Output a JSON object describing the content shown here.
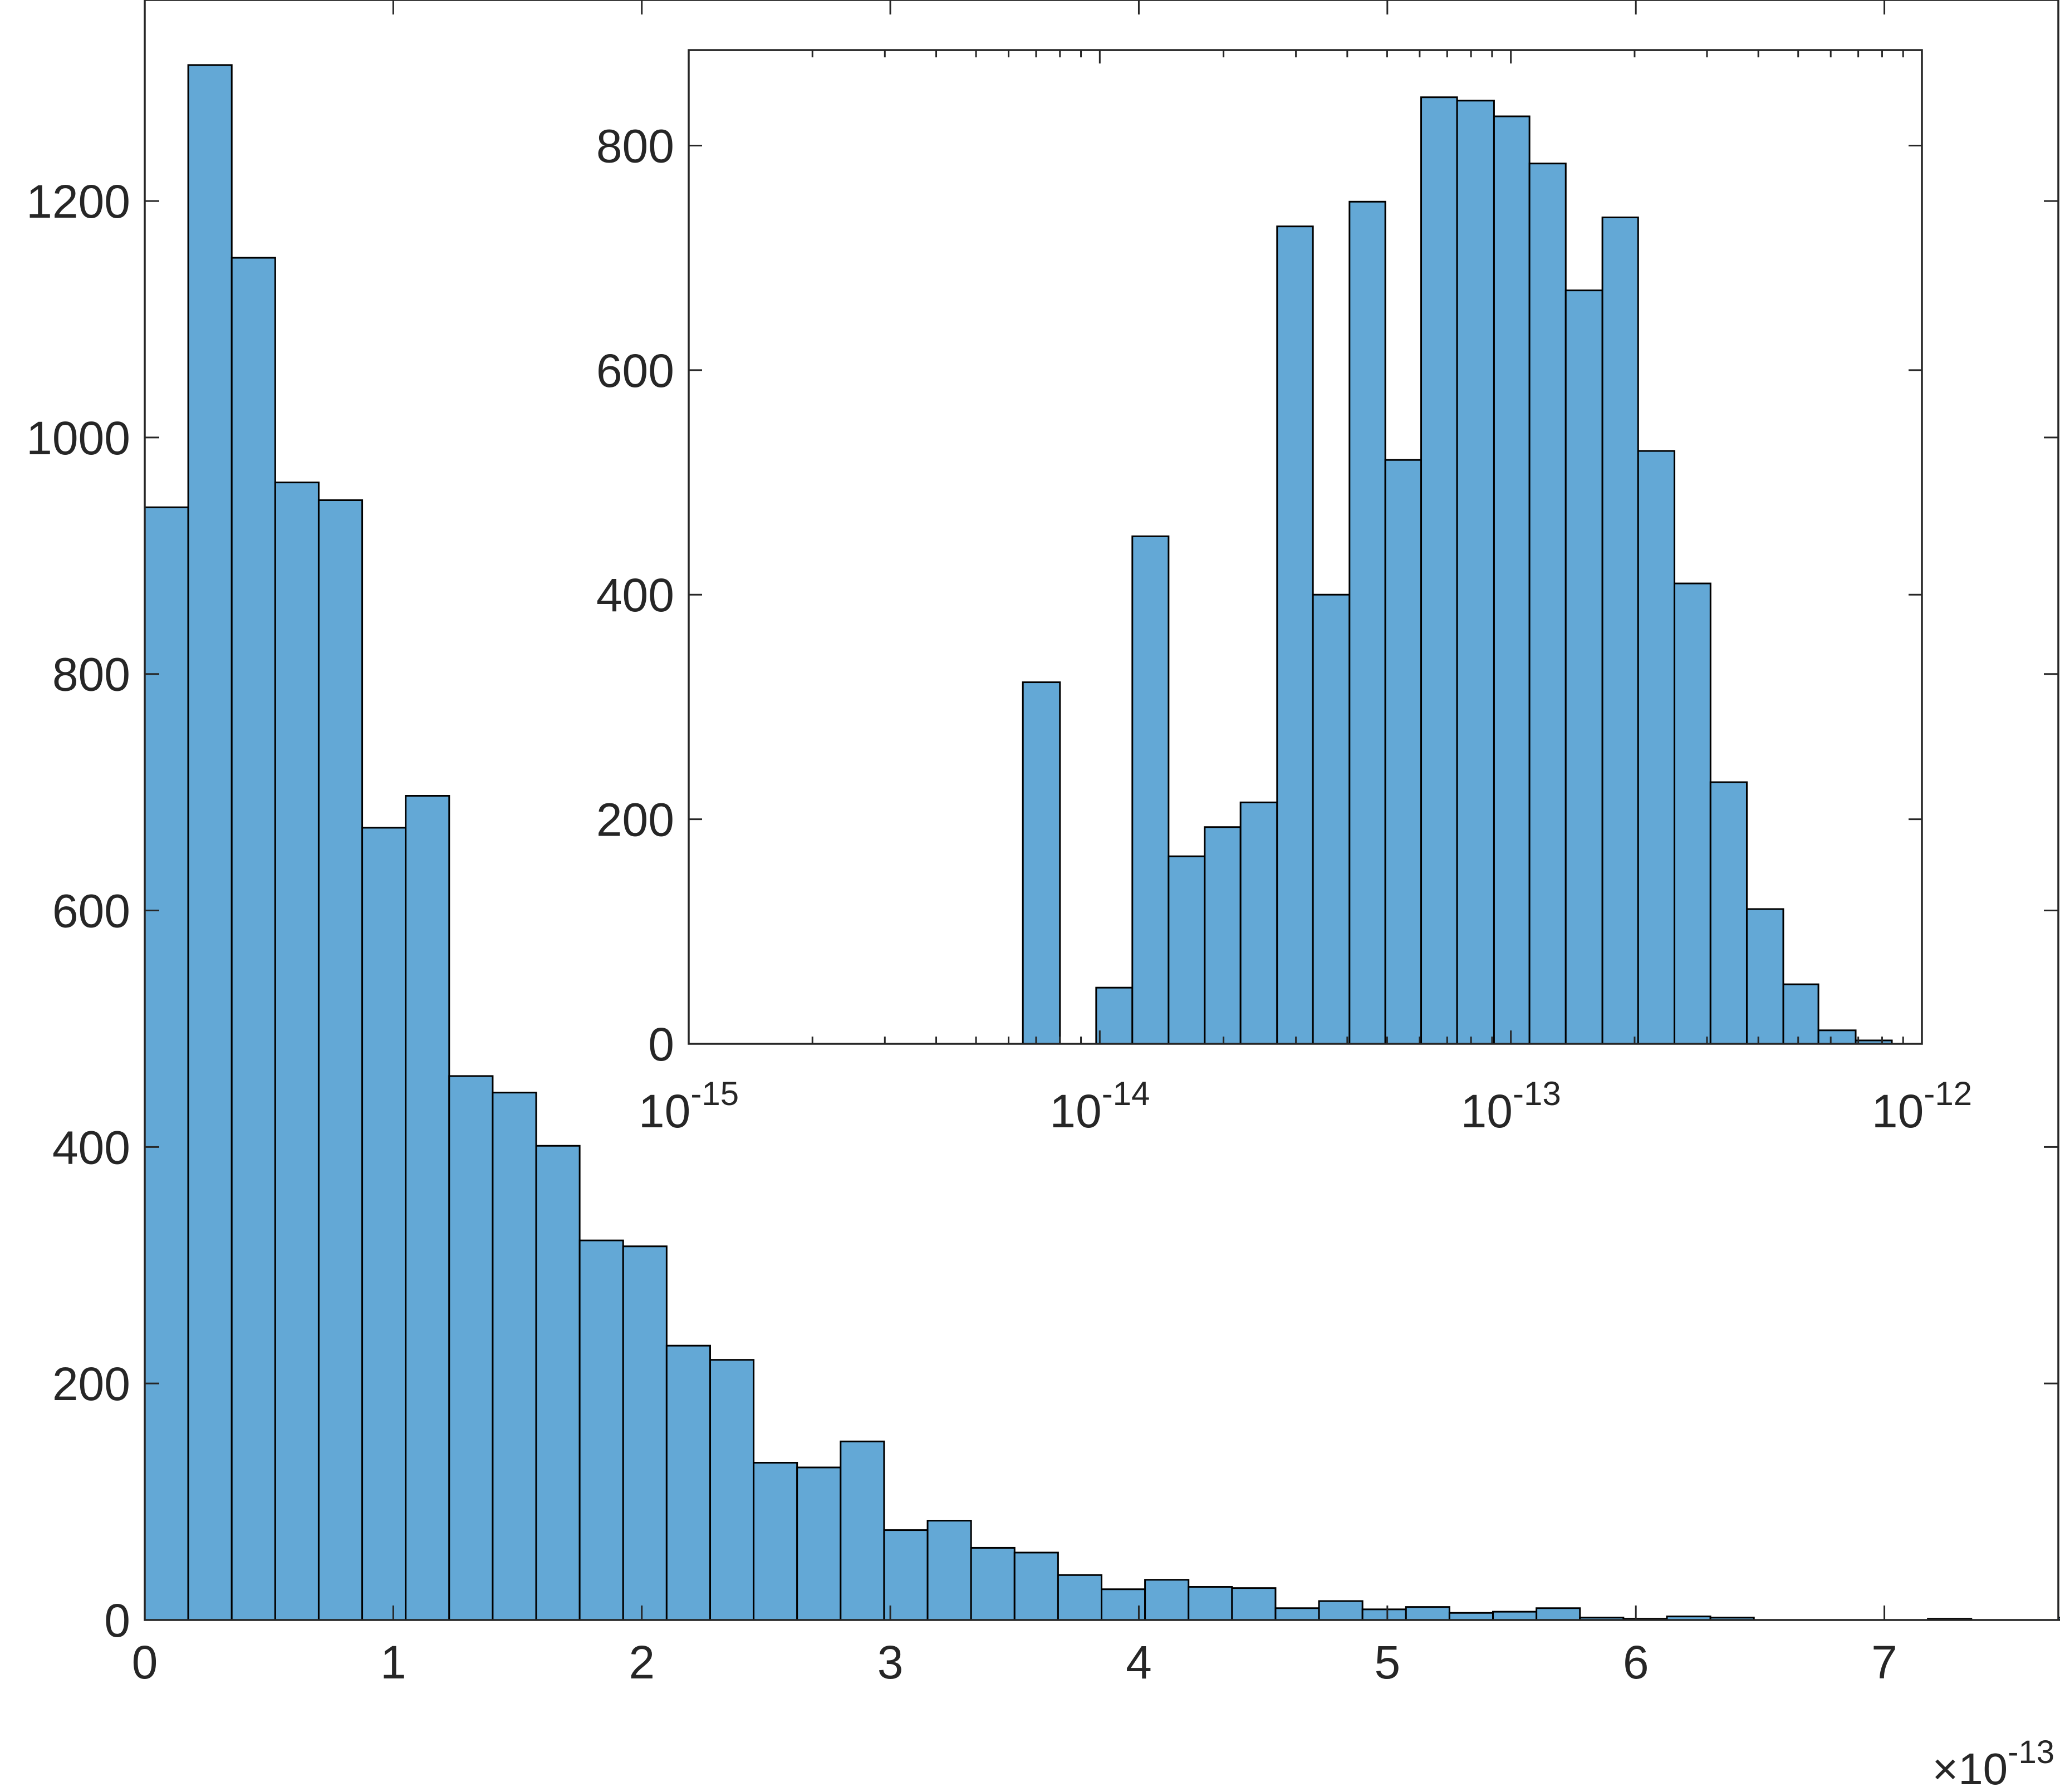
{
  "colors": {
    "bar_fill": "#63a8d6",
    "bar_edge": "#000000",
    "axis": "#262626",
    "background": "#ffffff"
  },
  "chart_data": [
    {
      "type": "bar",
      "title": "",
      "xlabel": "",
      "ylabel": "",
      "x_exponent_label": {
        "base": "×10",
        "exponent": "-13"
      },
      "bin_width": 0.175,
      "x_start": 0,
      "xlim": [
        0,
        7.7
      ],
      "ylim": [
        0,
        1370
      ],
      "xticks": [
        0,
        1,
        2,
        3,
        4,
        5,
        6,
        7
      ],
      "xtick_labels": [
        "0",
        "1",
        "2",
        "3",
        "4",
        "5",
        "6",
        "7"
      ],
      "yticks": [
        0,
        200,
        400,
        600,
        800,
        1000,
        1200
      ],
      "ytick_labels": [
        "0",
        "200",
        "400",
        "600",
        "800",
        "1000",
        "1200"
      ],
      "values": [
        941,
        1315,
        1152,
        962,
        947,
        670,
        697,
        460,
        446,
        401,
        321,
        316,
        232,
        220,
        133,
        129,
        151,
        76,
        84,
        61,
        57,
        38,
        26,
        34,
        28,
        27,
        10,
        16,
        9,
        11,
        6,
        7,
        10,
        2,
        1,
        3,
        2,
        0,
        0,
        0,
        0,
        1,
        0,
        0,
        2,
        0
      ],
      "grid": false,
      "legend": "none"
    },
    {
      "type": "bar",
      "title": "",
      "xlabel": "",
      "ylabel": "",
      "xscale": "log",
      "xlim": [
        1e-15,
        1e-12
      ],
      "ylim": [
        0,
        885
      ],
      "xticks": [
        1e-15,
        1e-14,
        1e-13,
        1e-12
      ],
      "xtick_labels": [
        {
          "base": "10",
          "exponent": "-15"
        },
        {
          "base": "10",
          "exponent": "-14"
        },
        {
          "base": "10",
          "exponent": "-13"
        },
        {
          "base": "10",
          "exponent": "-12"
        }
      ],
      "yticks": [
        0,
        200,
        400,
        600,
        800
      ],
      "ytick_labels": [
        "0",
        "200",
        "400",
        "600",
        "800"
      ],
      "bin_edges": [
        6.5e-15,
        8e-15,
        9.8e-15,
        1.2e-14,
        1.47e-14,
        1.8e-14,
        2.2e-14,
        2.7e-14,
        3.3e-14,
        4.05e-14,
        4.95e-14,
        6.05e-14,
        7.4e-14,
        9.1e-14,
        1.11e-13,
        1.36e-13,
        1.67e-13,
        2.04e-13,
        2.5e-13,
        3.06e-13,
        3.75e-13,
        4.6e-13,
        5.6e-13,
        6.9e-13,
        8.45e-13
      ],
      "values": [
        322,
        0,
        50,
        452,
        167,
        193,
        215,
        728,
        400,
        750,
        520,
        843,
        840,
        826,
        784,
        671,
        736,
        528,
        410,
        233,
        120,
        53,
        12,
        3
      ],
      "grid": false,
      "legend": "none"
    }
  ]
}
